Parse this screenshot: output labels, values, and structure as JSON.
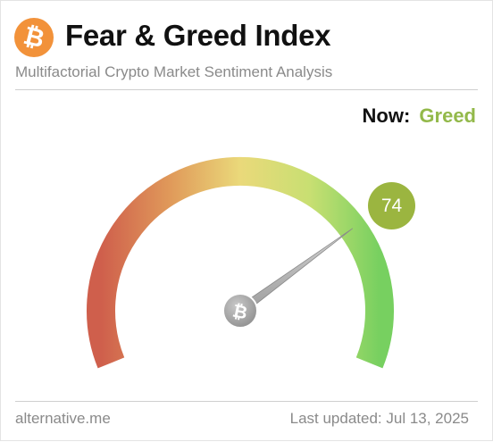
{
  "header": {
    "logo_icon": "bitcoin-icon",
    "logo_glyph": "₿",
    "logo_color": "#f2923a",
    "title": "Fear & Greed Index",
    "subtitle": "Multifactorial Crypto Market Sentiment Analysis"
  },
  "now": {
    "label": "Now:",
    "value": "Greed",
    "value_color": "#93b94a"
  },
  "gauge": {
    "score": "74",
    "min": 0,
    "max": 100,
    "needle_value": 74,
    "hub_icon": "bitcoin-icon",
    "hub_glyph": "₿",
    "colors": {
      "fear": "#cf5f4c",
      "neutral": "#ead97a",
      "greed": "#77d060",
      "badge": "#9bb540"
    }
  },
  "footer": {
    "source": "alternative.me",
    "updated": "Last updated: Jul 13, 2025"
  }
}
